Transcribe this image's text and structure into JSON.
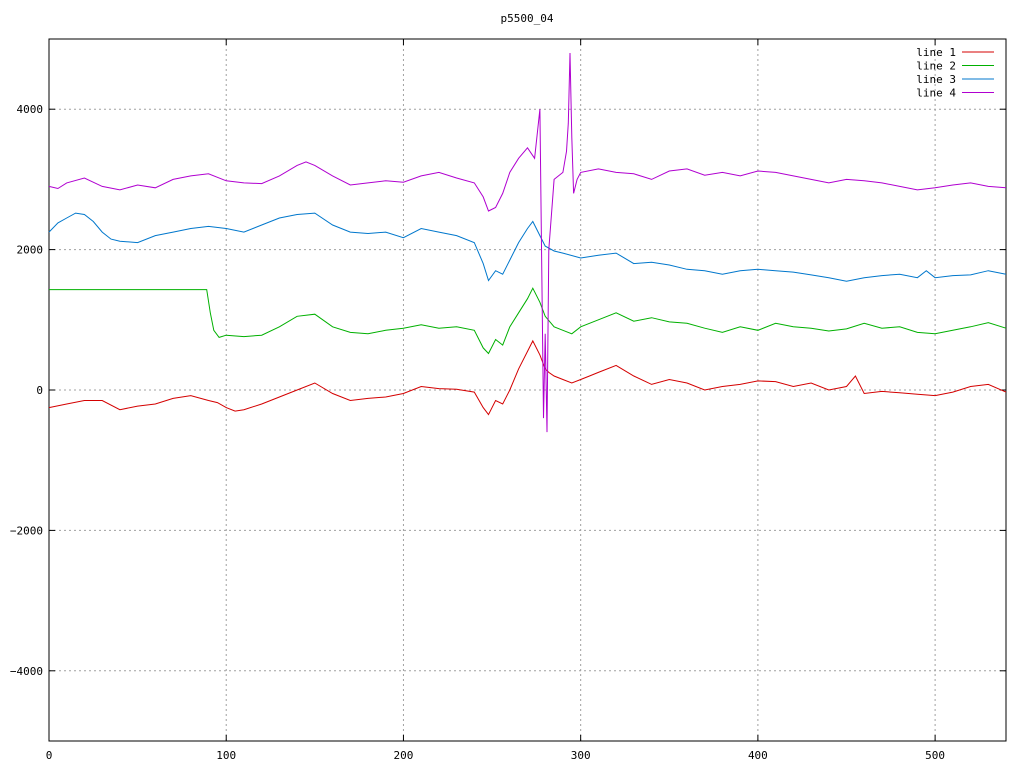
{
  "chart_data": {
    "type": "line",
    "title": "p5500_04",
    "xlabel": "",
    "ylabel": "",
    "xlim": [
      0,
      540
    ],
    "ylim": [
      -5000,
      5000
    ],
    "x_ticks": [
      0,
      100,
      200,
      300,
      400,
      500
    ],
    "y_ticks": [
      -4000,
      -2000,
      0,
      2000,
      4000
    ],
    "x_tick_labels": [
      "0",
      "100",
      "200",
      "300",
      "400",
      "500"
    ],
    "y_tick_labels": [
      "−4000",
      "−2000",
      "0",
      "2000",
      "4000"
    ],
    "grid": true,
    "legend_position": "top-right",
    "series": [
      {
        "name": "line 1",
        "color": "#d40000",
        "points": [
          [
            0,
            -250
          ],
          [
            10,
            -200
          ],
          [
            20,
            -150
          ],
          [
            30,
            -150
          ],
          [
            40,
            -280
          ],
          [
            50,
            -230
          ],
          [
            60,
            -200
          ],
          [
            70,
            -120
          ],
          [
            80,
            -80
          ],
          [
            90,
            -150
          ],
          [
            95,
            -180
          ],
          [
            100,
            -250
          ],
          [
            105,
            -300
          ],
          [
            110,
            -280
          ],
          [
            120,
            -200
          ],
          [
            130,
            -100
          ],
          [
            140,
            0
          ],
          [
            150,
            100
          ],
          [
            160,
            -50
          ],
          [
            170,
            -150
          ],
          [
            180,
            -120
          ],
          [
            190,
            -100
          ],
          [
            200,
            -50
          ],
          [
            210,
            50
          ],
          [
            220,
            20
          ],
          [
            230,
            10
          ],
          [
            240,
            -30
          ],
          [
            245,
            -250
          ],
          [
            248,
            -350
          ],
          [
            252,
            -150
          ],
          [
            256,
            -200
          ],
          [
            260,
            0
          ],
          [
            265,
            300
          ],
          [
            270,
            550
          ],
          [
            273,
            700
          ],
          [
            277,
            500
          ],
          [
            280,
            300
          ],
          [
            282,
            250
          ],
          [
            285,
            200
          ],
          [
            290,
            150
          ],
          [
            295,
            100
          ],
          [
            300,
            150
          ],
          [
            305,
            200
          ],
          [
            310,
            250
          ],
          [
            320,
            350
          ],
          [
            330,
            200
          ],
          [
            340,
            80
          ],
          [
            350,
            150
          ],
          [
            360,
            100
          ],
          [
            370,
            0
          ],
          [
            380,
            50
          ],
          [
            390,
            80
          ],
          [
            400,
            130
          ],
          [
            410,
            120
          ],
          [
            420,
            50
          ],
          [
            430,
            100
          ],
          [
            440,
            0
          ],
          [
            450,
            50
          ],
          [
            455,
            200
          ],
          [
            460,
            -50
          ],
          [
            470,
            -20
          ],
          [
            480,
            -40
          ],
          [
            490,
            -60
          ],
          [
            500,
            -80
          ],
          [
            510,
            -30
          ],
          [
            520,
            50
          ],
          [
            530,
            80
          ],
          [
            540,
            -30
          ]
        ]
      },
      {
        "name": "line 2",
        "color": "#00b000",
        "points": [
          [
            0,
            1430
          ],
          [
            10,
            1430
          ],
          [
            20,
            1430
          ],
          [
            30,
            1430
          ],
          [
            40,
            1430
          ],
          [
            50,
            1430
          ],
          [
            60,
            1430
          ],
          [
            70,
            1430
          ],
          [
            80,
            1430
          ],
          [
            89,
            1430
          ],
          [
            91,
            1100
          ],
          [
            93,
            850
          ],
          [
            96,
            750
          ],
          [
            100,
            780
          ],
          [
            110,
            760
          ],
          [
            120,
            780
          ],
          [
            130,
            900
          ],
          [
            140,
            1050
          ],
          [
            150,
            1080
          ],
          [
            160,
            900
          ],
          [
            170,
            820
          ],
          [
            180,
            800
          ],
          [
            190,
            850
          ],
          [
            200,
            880
          ],
          [
            210,
            930
          ],
          [
            220,
            880
          ],
          [
            230,
            900
          ],
          [
            240,
            850
          ],
          [
            245,
            600
          ],
          [
            248,
            520
          ],
          [
            252,
            720
          ],
          [
            256,
            640
          ],
          [
            260,
            900
          ],
          [
            265,
            1100
          ],
          [
            270,
            1300
          ],
          [
            273,
            1450
          ],
          [
            277,
            1250
          ],
          [
            280,
            1050
          ],
          [
            285,
            900
          ],
          [
            290,
            850
          ],
          [
            295,
            800
          ],
          [
            300,
            900
          ],
          [
            310,
            1000
          ],
          [
            320,
            1100
          ],
          [
            330,
            980
          ],
          [
            340,
            1030
          ],
          [
            350,
            970
          ],
          [
            360,
            950
          ],
          [
            370,
            880
          ],
          [
            380,
            820
          ],
          [
            390,
            900
          ],
          [
            400,
            850
          ],
          [
            410,
            950
          ],
          [
            420,
            900
          ],
          [
            430,
            880
          ],
          [
            440,
            840
          ],
          [
            450,
            870
          ],
          [
            460,
            950
          ],
          [
            470,
            880
          ],
          [
            480,
            900
          ],
          [
            490,
            820
          ],
          [
            500,
            800
          ],
          [
            510,
            850
          ],
          [
            520,
            900
          ],
          [
            530,
            960
          ],
          [
            540,
            880
          ]
        ]
      },
      {
        "name": "line 3",
        "color": "#0077cc",
        "points": [
          [
            0,
            2250
          ],
          [
            5,
            2380
          ],
          [
            10,
            2450
          ],
          [
            15,
            2520
          ],
          [
            20,
            2500
          ],
          [
            25,
            2400
          ],
          [
            30,
            2250
          ],
          [
            35,
            2150
          ],
          [
            40,
            2120
          ],
          [
            50,
            2100
          ],
          [
            60,
            2200
          ],
          [
            70,
            2250
          ],
          [
            80,
            2300
          ],
          [
            90,
            2330
          ],
          [
            100,
            2300
          ],
          [
            110,
            2250
          ],
          [
            120,
            2350
          ],
          [
            130,
            2450
          ],
          [
            140,
            2500
          ],
          [
            150,
            2520
          ],
          [
            160,
            2350
          ],
          [
            170,
            2250
          ],
          [
            180,
            2230
          ],
          [
            190,
            2250
          ],
          [
            200,
            2170
          ],
          [
            210,
            2300
          ],
          [
            220,
            2250
          ],
          [
            230,
            2200
          ],
          [
            240,
            2100
          ],
          [
            245,
            1800
          ],
          [
            248,
            1560
          ],
          [
            252,
            1700
          ],
          [
            256,
            1650
          ],
          [
            260,
            1850
          ],
          [
            265,
            2100
          ],
          [
            270,
            2300
          ],
          [
            273,
            2400
          ],
          [
            277,
            2200
          ],
          [
            280,
            2050
          ],
          [
            285,
            1980
          ],
          [
            290,
            1950
          ],
          [
            300,
            1880
          ],
          [
            310,
            1920
          ],
          [
            320,
            1950
          ],
          [
            330,
            1800
          ],
          [
            340,
            1820
          ],
          [
            350,
            1780
          ],
          [
            360,
            1720
          ],
          [
            370,
            1700
          ],
          [
            380,
            1650
          ],
          [
            390,
            1700
          ],
          [
            400,
            1720
          ],
          [
            410,
            1700
          ],
          [
            420,
            1680
          ],
          [
            430,
            1640
          ],
          [
            440,
            1600
          ],
          [
            450,
            1550
          ],
          [
            460,
            1600
          ],
          [
            470,
            1630
          ],
          [
            480,
            1650
          ],
          [
            490,
            1600
          ],
          [
            495,
            1700
          ],
          [
            500,
            1600
          ],
          [
            510,
            1630
          ],
          [
            520,
            1640
          ],
          [
            530,
            1700
          ],
          [
            540,
            1650
          ]
        ]
      },
      {
        "name": "line 4",
        "color": "#b000d0",
        "points": [
          [
            0,
            2900
          ],
          [
            5,
            2870
          ],
          [
            10,
            2950
          ],
          [
            20,
            3020
          ],
          [
            30,
            2900
          ],
          [
            40,
            2850
          ],
          [
            50,
            2920
          ],
          [
            60,
            2880
          ],
          [
            70,
            3000
          ],
          [
            80,
            3050
          ],
          [
            90,
            3080
          ],
          [
            100,
            2980
          ],
          [
            110,
            2950
          ],
          [
            120,
            2940
          ],
          [
            130,
            3050
          ],
          [
            140,
            3200
          ],
          [
            145,
            3250
          ],
          [
            150,
            3200
          ],
          [
            160,
            3050
          ],
          [
            170,
            2920
          ],
          [
            180,
            2950
          ],
          [
            190,
            2980
          ],
          [
            200,
            2960
          ],
          [
            210,
            3050
          ],
          [
            220,
            3100
          ],
          [
            230,
            3020
          ],
          [
            240,
            2950
          ],
          [
            245,
            2750
          ],
          [
            248,
            2550
          ],
          [
            252,
            2600
          ],
          [
            256,
            2800
          ],
          [
            260,
            3100
          ],
          [
            265,
            3300
          ],
          [
            270,
            3450
          ],
          [
            274,
            3300
          ],
          [
            277,
            4000
          ],
          [
            279,
            -400
          ],
          [
            280,
            800
          ],
          [
            281,
            -600
          ],
          [
            282,
            2000
          ],
          [
            285,
            3000
          ],
          [
            290,
            3100
          ],
          [
            292,
            3400
          ],
          [
            293,
            3800
          ],
          [
            294,
            4800
          ],
          [
            295,
            3600
          ],
          [
            296,
            2800
          ],
          [
            298,
            3000
          ],
          [
            300,
            3100
          ],
          [
            310,
            3150
          ],
          [
            320,
            3100
          ],
          [
            330,
            3080
          ],
          [
            340,
            3000
          ],
          [
            350,
            3120
          ],
          [
            360,
            3150
          ],
          [
            370,
            3060
          ],
          [
            380,
            3100
          ],
          [
            390,
            3050
          ],
          [
            400,
            3120
          ],
          [
            410,
            3100
          ],
          [
            420,
            3050
          ],
          [
            430,
            3000
          ],
          [
            440,
            2950
          ],
          [
            450,
            3000
          ],
          [
            460,
            2980
          ],
          [
            470,
            2950
          ],
          [
            480,
            2900
          ],
          [
            490,
            2850
          ],
          [
            500,
            2880
          ],
          [
            510,
            2920
          ],
          [
            520,
            2950
          ],
          [
            530,
            2900
          ],
          [
            540,
            2880
          ]
        ]
      }
    ]
  }
}
